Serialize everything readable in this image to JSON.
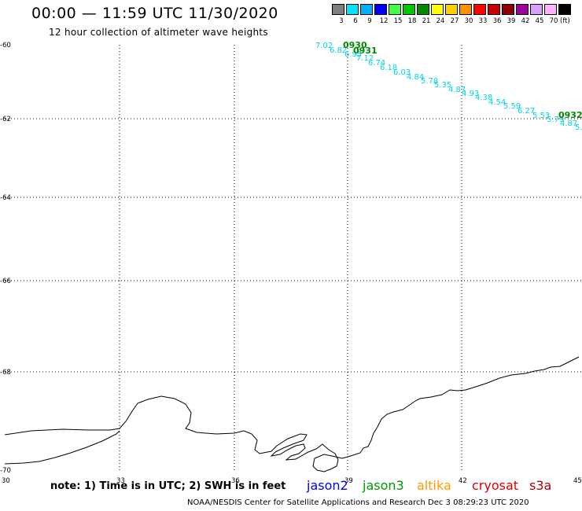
{
  "header": {
    "title": "00:00 — 11:59 UTC 11/30/2020",
    "subtitle": "12 hour collection of altimeter wave heights"
  },
  "legend": {
    "unit": "(ft)",
    "items": [
      {
        "label": "3",
        "color": "#7f7f7f"
      },
      {
        "label": "6",
        "color": "#00e5ff"
      },
      {
        "label": "9",
        "color": "#00b0ff"
      },
      {
        "label": "12",
        "color": "#0000ff"
      },
      {
        "label": "15",
        "color": "#40ff40"
      },
      {
        "label": "18",
        "color": "#00c800"
      },
      {
        "label": "21",
        "color": "#008c00"
      },
      {
        "label": "24",
        "color": "#ffff00"
      },
      {
        "label": "27",
        "color": "#ffd000"
      },
      {
        "label": "30",
        "color": "#ff9000"
      },
      {
        "label": "33",
        "color": "#ff0000"
      },
      {
        "label": "36",
        "color": "#c80000"
      },
      {
        "label": "39",
        "color": "#8c0000"
      },
      {
        "label": "42",
        "color": "#a000a0"
      },
      {
        "label": "45",
        "color": "#d8a0ff"
      },
      {
        "label": "70",
        "color": "#ffb0ff"
      },
      {
        "label": "",
        "color": "#000000"
      }
    ]
  },
  "map": {
    "lon_range": [
      30,
      45
    ],
    "lat_range": [
      -70,
      -60
    ],
    "lat_ticks": [
      "-60",
      "-62",
      "-64",
      "-66",
      "-68",
      "-70"
    ],
    "lon_ticks": [
      "30",
      "33",
      "36",
      "39",
      "42",
      "45"
    ]
  },
  "track": {
    "color": "#00d4e0",
    "time_labels": [
      "0930",
      "0931",
      "0932"
    ],
    "swh_values": [
      "7.02",
      "6.82",
      "6.95",
      "7.12",
      "6.74",
      "6.18",
      "6.03",
      "4.84",
      "5.78",
      "5.35",
      "4.87",
      "4.93",
      "4.38",
      "4.54",
      "5.59",
      "6.27",
      "5.53",
      "5.79",
      "4.87",
      "5."
    ]
  },
  "footer": {
    "note": "note: 1) Time is in UTC; 2) SWH is in feet",
    "satellites": [
      {
        "name": "jason2",
        "color": "#0000ff"
      },
      {
        "name": "jason3",
        "color": "#009900"
      },
      {
        "name": "altika",
        "color": "#ff9900"
      },
      {
        "name": "cryosat",
        "color": "#dd0000"
      },
      {
        "name": "s3a",
        "color": "#aa0000"
      }
    ],
    "credit": "NOAA/NESDIS Center for Satellite Applications and Research   Dec  3 08:29:23 UTC 2020"
  }
}
